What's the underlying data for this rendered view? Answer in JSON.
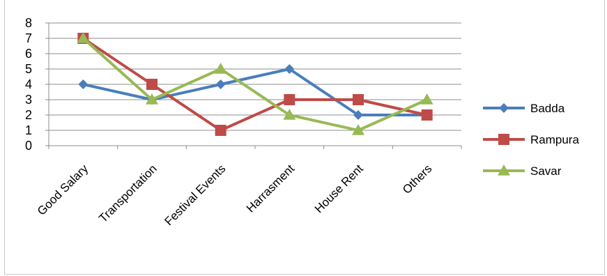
{
  "chart_data": {
    "type": "line",
    "categories": [
      "Good Salary",
      "Transportation",
      "Festival Events",
      "Harrasment",
      "House Rent",
      "Others"
    ],
    "ylim": [
      0,
      8
    ],
    "yticks": [
      0,
      1,
      2,
      3,
      4,
      5,
      6,
      7,
      8
    ],
    "grid": true,
    "legend_position": "right",
    "series": [
      {
        "name": "Badda",
        "color": "#4a7ebb",
        "marker": "diamond",
        "values": [
          4,
          3,
          4,
          5,
          2,
          2
        ]
      },
      {
        "name": "Rampura",
        "color": "#be4b48",
        "marker": "square",
        "values": [
          7,
          4,
          1,
          3,
          3,
          2
        ]
      },
      {
        "name": "Savar",
        "color": "#98b954",
        "marker": "triangle",
        "values": [
          7,
          3,
          5,
          2,
          1,
          3
        ]
      }
    ]
  }
}
